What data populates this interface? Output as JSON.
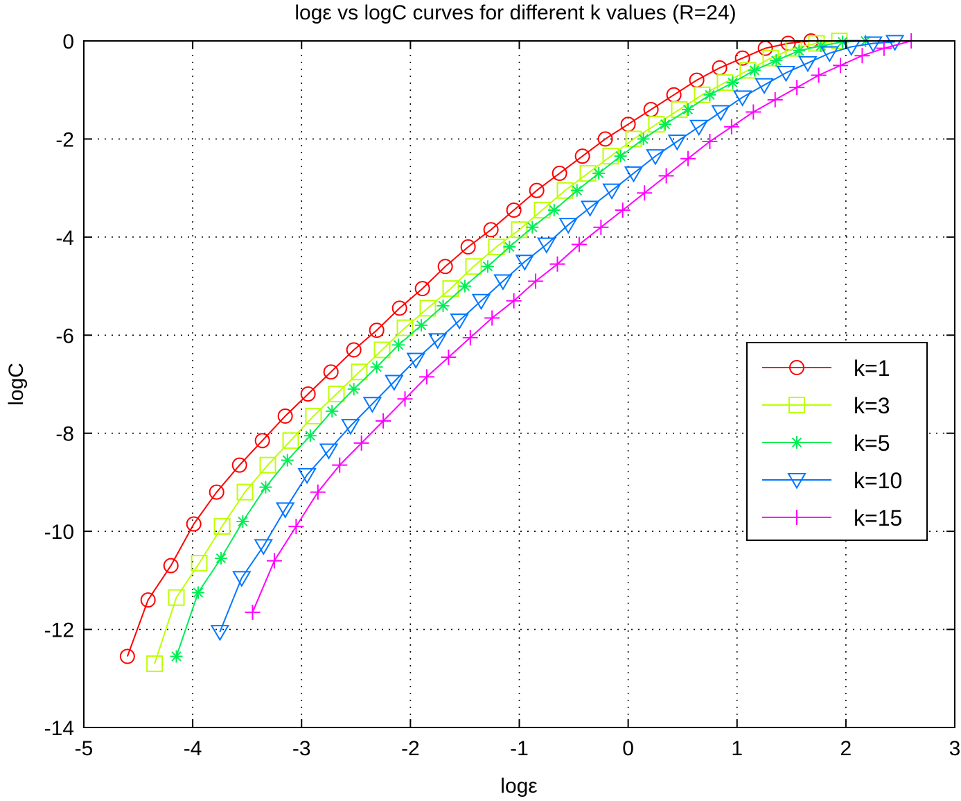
{
  "chart_data": {
    "type": "line",
    "title": "logε  vs  logC  curves for different k values (R=24)",
    "xlabel": "logε",
    "ylabel": "logC",
    "xlim": [
      -5,
      3
    ],
    "ylim": [
      -14,
      0
    ],
    "xticks": [
      -5,
      -4,
      -3,
      -2,
      -1,
      0,
      1,
      2,
      3
    ],
    "yticks": [
      0,
      -2,
      -4,
      -6,
      -8,
      -10,
      -12,
      -14
    ],
    "xtick_labels": [
      "-5",
      "-4",
      "-3",
      "-2",
      "-1",
      "0",
      "1",
      "2",
      "3"
    ],
    "ytick_labels": [
      "0",
      "-2",
      "-4",
      "-6",
      "-8",
      "-10",
      "-12",
      "-14"
    ],
    "grid": true,
    "legend_position": "right",
    "series": [
      {
        "name": "k=1",
        "color": "#ff0000",
        "marker": "circle",
        "x": [
          -4.6,
          -4.41,
          -4.2,
          -3.99,
          -3.78,
          -3.57,
          -3.36,
          -3.15,
          -2.94,
          -2.73,
          -2.52,
          -2.31,
          -2.1,
          -1.89,
          -1.68,
          -1.47,
          -1.26,
          -1.05,
          -0.84,
          -0.63,
          -0.42,
          -0.21,
          0.0,
          0.21,
          0.42,
          0.63,
          0.84,
          1.05,
          1.26,
          1.47,
          1.68
        ],
        "y": [
          -12.55,
          -11.4,
          -10.7,
          -9.85,
          -9.2,
          -8.65,
          -8.15,
          -7.65,
          -7.2,
          -6.75,
          -6.3,
          -5.9,
          -5.45,
          -5.05,
          -4.6,
          -4.2,
          -3.85,
          -3.45,
          -3.05,
          -2.7,
          -2.35,
          -2.0,
          -1.7,
          -1.4,
          -1.1,
          -0.8,
          -0.55,
          -0.35,
          -0.15,
          -0.05,
          0.0
        ]
      },
      {
        "name": "k=3",
        "color": "#bbff00",
        "marker": "square",
        "x": [
          -4.35,
          -4.15,
          -3.94,
          -3.73,
          -3.52,
          -3.31,
          -3.1,
          -2.89,
          -2.68,
          -2.47,
          -2.26,
          -2.05,
          -1.84,
          -1.63,
          -1.42,
          -1.21,
          -1.0,
          -0.79,
          -0.58,
          -0.37,
          -0.16,
          0.05,
          0.26,
          0.47,
          0.68,
          0.89,
          1.1,
          1.31,
          1.52,
          1.73,
          1.94
        ],
        "y": [
          -12.7,
          -11.35,
          -10.65,
          -9.9,
          -9.2,
          -8.65,
          -8.15,
          -7.65,
          -7.2,
          -6.75,
          -6.3,
          -5.85,
          -5.45,
          -5.05,
          -4.6,
          -4.2,
          -3.85,
          -3.45,
          -3.05,
          -2.7,
          -2.35,
          -2.0,
          -1.7,
          -1.4,
          -1.1,
          -0.85,
          -0.6,
          -0.35,
          -0.15,
          -0.05,
          0.0
        ]
      },
      {
        "name": "k=5",
        "color": "#00ee55",
        "marker": "asterisk",
        "x": [
          -4.15,
          -3.95,
          -3.74,
          -3.54,
          -3.33,
          -3.13,
          -2.92,
          -2.72,
          -2.52,
          -2.31,
          -2.11,
          -1.9,
          -1.7,
          -1.5,
          -1.29,
          -1.09,
          -0.88,
          -0.68,
          -0.47,
          -0.27,
          -0.07,
          0.14,
          0.34,
          0.55,
          0.75,
          0.96,
          1.16,
          1.36,
          1.57,
          1.77,
          1.97,
          2.18
        ],
        "y": [
          -12.55,
          -11.25,
          -10.55,
          -9.8,
          -9.1,
          -8.55,
          -8.05,
          -7.55,
          -7.1,
          -6.65,
          -6.2,
          -5.8,
          -5.4,
          -5.0,
          -4.6,
          -4.2,
          -3.8,
          -3.45,
          -3.05,
          -2.7,
          -2.35,
          -2.0,
          -1.7,
          -1.4,
          -1.1,
          -0.85,
          -0.6,
          -0.4,
          -0.2,
          -0.1,
          -0.02,
          0.0
        ]
      },
      {
        "name": "k=10",
        "color": "#0077ff",
        "marker": "triangle-down",
        "x": [
          -3.75,
          -3.55,
          -3.35,
          -3.15,
          -2.95,
          -2.75,
          -2.55,
          -2.35,
          -2.15,
          -1.95,
          -1.75,
          -1.55,
          -1.35,
          -1.15,
          -0.95,
          -0.75,
          -0.55,
          -0.35,
          -0.15,
          0.05,
          0.25,
          0.45,
          0.65,
          0.85,
          1.05,
          1.25,
          1.45,
          1.65,
          1.85,
          2.05,
          2.25,
          2.45
        ],
        "y": [
          -12.05,
          -10.95,
          -10.3,
          -9.55,
          -8.85,
          -8.35,
          -7.85,
          -7.4,
          -6.95,
          -6.5,
          -6.1,
          -5.7,
          -5.3,
          -4.9,
          -4.5,
          -4.15,
          -3.75,
          -3.4,
          -3.05,
          -2.7,
          -2.35,
          -2.05,
          -1.75,
          -1.45,
          -1.15,
          -0.9,
          -0.65,
          -0.45,
          -0.25,
          -0.12,
          -0.05,
          -0.02
        ]
      },
      {
        "name": "k=15",
        "color": "#ff00ff",
        "marker": "plus",
        "x": [
          -3.45,
          -3.25,
          -3.05,
          -2.85,
          -2.65,
          -2.45,
          -2.25,
          -2.05,
          -1.85,
          -1.65,
          -1.45,
          -1.25,
          -1.05,
          -0.85,
          -0.65,
          -0.45,
          -0.25,
          -0.05,
          0.15,
          0.35,
          0.55,
          0.75,
          0.95,
          1.15,
          1.35,
          1.55,
          1.75,
          1.95,
          2.15,
          2.35,
          2.6
        ],
        "y": [
          -11.65,
          -10.6,
          -9.9,
          -9.2,
          -8.65,
          -8.2,
          -7.75,
          -7.3,
          -6.85,
          -6.45,
          -6.05,
          -5.65,
          -5.3,
          -4.9,
          -4.55,
          -4.15,
          -3.8,
          -3.45,
          -3.1,
          -2.75,
          -2.4,
          -2.05,
          -1.75,
          -1.45,
          -1.2,
          -0.95,
          -0.7,
          -0.5,
          -0.3,
          -0.15,
          0.0
        ]
      }
    ]
  }
}
